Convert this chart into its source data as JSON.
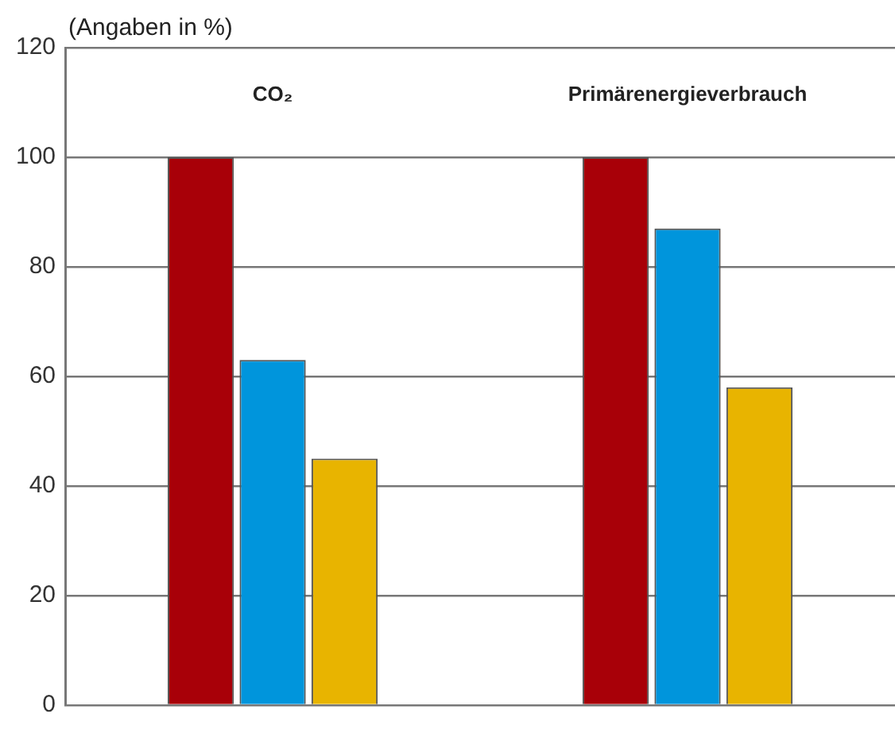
{
  "chart_data": {
    "type": "bar",
    "ylabel": "(Angaben in %)",
    "categories": [
      "CO₂",
      "Primärenergieverbrauch"
    ],
    "series": [
      {
        "color": "#a80008",
        "values": [
          100,
          100
        ]
      },
      {
        "color": "#0095dc",
        "values": [
          63,
          87
        ]
      },
      {
        "color": "#e8b400",
        "values": [
          45,
          58
        ]
      }
    ],
    "ylim": [
      0,
      120
    ],
    "yticks": [
      0,
      20,
      40,
      60,
      80,
      100,
      120
    ],
    "grid": "y",
    "legend": false
  }
}
